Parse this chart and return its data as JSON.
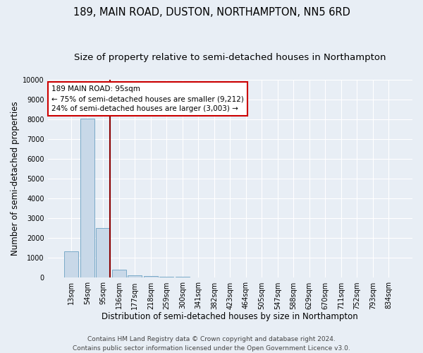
{
  "title": "189, MAIN ROAD, DUSTON, NORTHAMPTON, NN5 6RD",
  "subtitle": "Size of property relative to semi-detached houses in Northampton",
  "xlabel": "Distribution of semi-detached houses by size in Northampton",
  "ylabel": "Number of semi-detached properties",
  "footnote1": "Contains HM Land Registry data © Crown copyright and database right 2024.",
  "footnote2": "Contains public sector information licensed under the Open Government Licence v3.0.",
  "categories": [
    "13sqm",
    "54sqm",
    "95sqm",
    "136sqm",
    "177sqm",
    "218sqm",
    "259sqm",
    "300sqm",
    "341sqm",
    "382sqm",
    "423sqm",
    "464sqm",
    "505sqm",
    "547sqm",
    "588sqm",
    "629sqm",
    "670sqm",
    "711sqm",
    "752sqm",
    "793sqm",
    "834sqm"
  ],
  "values": [
    1320,
    8020,
    2510,
    400,
    135,
    100,
    70,
    50,
    5,
    3,
    2,
    2,
    1,
    1,
    1,
    1,
    1,
    1,
    1,
    1,
    1
  ],
  "bar_color": "#c8d8e8",
  "bar_edge_color": "#7aaac8",
  "highlight_line_color": "#8b0000",
  "annotation_text": "189 MAIN ROAD: 95sqm\n← 75% of semi-detached houses are smaller (9,212)\n24% of semi-detached houses are larger (3,003) →",
  "annotation_box_color": "#ffffff",
  "annotation_box_edge": "#cc0000",
  "ylim": [
    0,
    10000
  ],
  "yticks": [
    0,
    1000,
    2000,
    3000,
    4000,
    5000,
    6000,
    7000,
    8000,
    9000,
    10000
  ],
  "background_color": "#e8eef5",
  "grid_color": "#ffffff",
  "title_fontsize": 10.5,
  "subtitle_fontsize": 9.5,
  "axis_label_fontsize": 8.5,
  "tick_fontsize": 7,
  "annotation_fontsize": 7.5,
  "footnote_fontsize": 6.5
}
